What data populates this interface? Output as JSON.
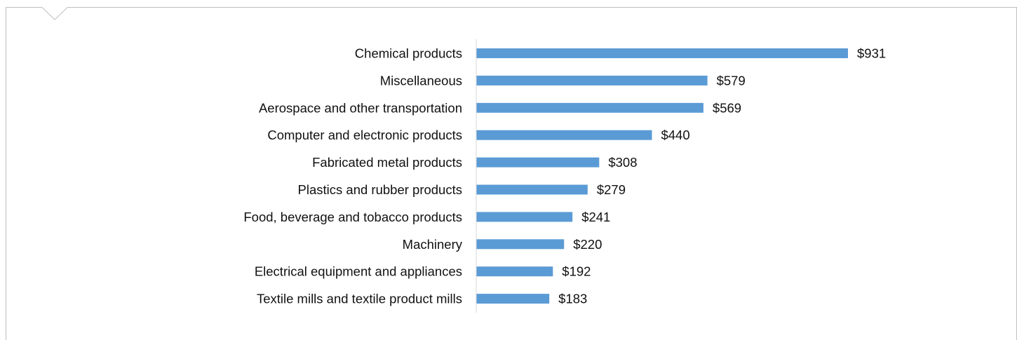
{
  "chart_data": {
    "type": "bar",
    "orientation": "horizontal",
    "categories": [
      "Chemical products",
      "Miscellaneous",
      "Aerospace and other transportation",
      "Computer and electronic products",
      "Fabricated metal products",
      "Plastics and rubber products",
      "Food, beverage and tobacco products",
      "Machinery",
      "Electrical equipment and appliances",
      "Textile mills and textile product mills"
    ],
    "values": [
      931,
      579,
      569,
      440,
      308,
      279,
      241,
      220,
      192,
      183
    ],
    "data_labels": [
      "$931",
      "$579",
      "$569",
      "$440",
      "$308",
      "$279",
      "$241",
      "$220",
      "$192",
      "$183"
    ],
    "title": "",
    "xlabel": "",
    "ylabel": "",
    "xlim": [
      0,
      931
    ],
    "grid": false,
    "legend": "none",
    "colors": {
      "bar": "#5b9bd5",
      "axis": "#d9d9d9",
      "frame": "#bfbfbf",
      "text": "#111111"
    }
  }
}
